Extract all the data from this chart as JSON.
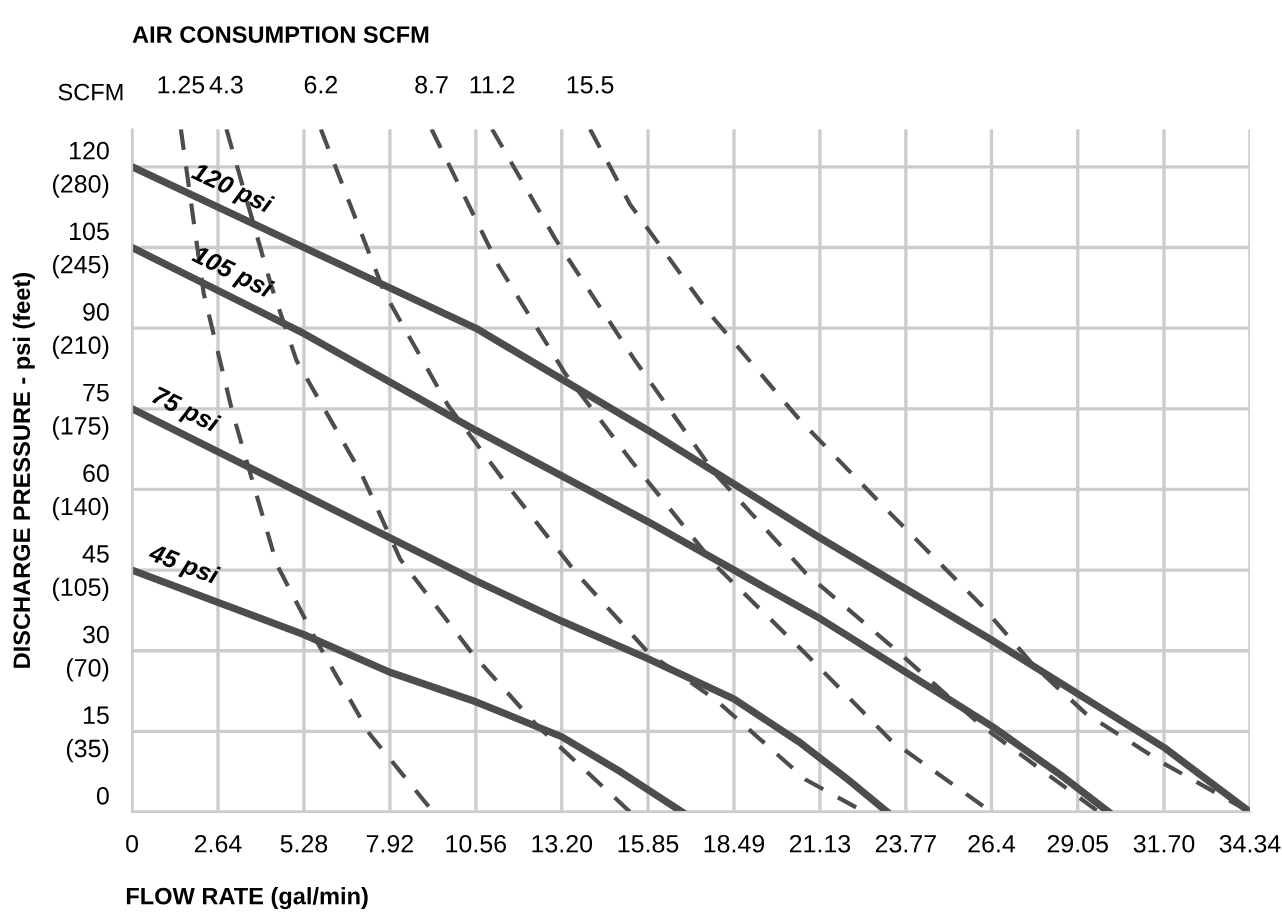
{
  "chart_data": {
    "type": "line",
    "title": "AIR CONSUMPTION SCFM",
    "xlabel": "FLOW RATE (gal/min)",
    "y2label": "DISCHARGE PRESSURE - psi (feet)",
    "annotations": [
      "SCFM"
    ],
    "series": [
      {
        "name": "120 psi",
        "color": "#4d4d4d",
        "line_style": "solid",
        "x": [
          0,
          5.28,
          10.56,
          15.85,
          21.13,
          26.4,
          29.05,
          31.7,
          34.34
        ],
        "values": [
          120,
          105,
          90,
          71,
          51,
          32,
          22,
          12,
          0
        ]
      },
      {
        "name": "105 psi",
        "color": "#4d4d4d",
        "line_style": "solid",
        "x": [
          0,
          5.28,
          10.56,
          15.85,
          21.13,
          23.77,
          26.4,
          28.5,
          30.0
        ],
        "values": [
          105,
          89,
          71,
          54,
          36,
          26,
          16,
          7,
          0
        ]
      },
      {
        "name": "75 psi",
        "color": "#4d4d4d",
        "line_style": "solid",
        "x": [
          0,
          2.64,
          5.28,
          7.92,
          10.56,
          13.2,
          15.85,
          18.49,
          20.5,
          22,
          23.2
        ],
        "values": [
          75,
          67,
          59,
          51,
          43,
          35.5,
          28.5,
          21,
          13,
          6,
          0
        ]
      },
      {
        "name": "45 psi",
        "color": "#4d4d4d",
        "line_style": "solid",
        "x": [
          0,
          2.64,
          5.28,
          7.92,
          10.56,
          13.2,
          15,
          16.9
        ],
        "values": [
          45,
          39,
          33,
          26,
          20.5,
          14,
          7.5,
          0
        ]
      },
      {
        "name": "1.25",
        "color": "#4d4d4d",
        "line_style": "dashed",
        "x": [
          1.5,
          2.2,
          3.1,
          4.45,
          5.65,
          7.3,
          9.25
        ],
        "values": [
          127,
          96.5,
          74,
          46,
          32,
          14.5,
          0
        ]
      },
      {
        "name": "4.3",
        "color": "#4d4d4d",
        "line_style": "dashed",
        "x": [
          2.9,
          4.27,
          5.05,
          7.04,
          8.24,
          10.46,
          12.45,
          15.3
        ],
        "values": [
          127,
          98,
          84,
          63,
          47,
          29.4,
          16,
          0
        ]
      },
      {
        "name": "6.2",
        "color": "#4d4d4d",
        "line_style": "dashed",
        "x": [
          5.8,
          7.76,
          9.7,
          11.5,
          13.65,
          15.9,
          17.9,
          20.7,
          22.5
        ],
        "values": [
          127,
          96.5,
          75.7,
          61,
          44.4,
          29.4,
          21,
          6,
          0
        ]
      },
      {
        "name": "8.7",
        "color": "#4d4d4d",
        "line_style": "dashed",
        "x": [
          9.2,
          11.25,
          13.3,
          15.3,
          17.9,
          20.7,
          23.3,
          26.4
        ],
        "values": [
          127,
          101.7,
          81.6,
          65.6,
          46,
          29.4,
          13.4,
          0
        ]
      },
      {
        "name": "11.2",
        "color": "#4d4d4d",
        "line_style": "dashed",
        "x": [
          11.06,
          13.0,
          15.45,
          17.9,
          20.7,
          23.3,
          26.1,
          29.7
        ],
        "values": [
          127,
          106.6,
          84,
          63,
          44.4,
          31,
          16,
          0
        ]
      },
      {
        "name": "15.5",
        "color": "#4d4d4d",
        "line_style": "dashed",
        "x": [
          14.07,
          15.3,
          17.7,
          20.5,
          23.3,
          26.1,
          27.7,
          29.3,
          31.7,
          34.34
        ],
        "values": [
          127,
          113,
          93,
          73,
          55.5,
          38.4,
          27.2,
          18.3,
          9,
          0
        ]
      }
    ],
    "xlim": [
      0,
      34.34
    ],
    "ylim": [
      0,
      127
    ],
    "xticks": [
      0,
      2.64,
      5.28,
      7.92,
      10.56,
      {
        "value": 13.2,
        "label": "13.20"
      },
      15.85,
      18.49,
      21.13,
      23.77,
      26.4,
      29.05,
      {
        "value": 31.7,
        "label": "31.70"
      },
      34.34
    ],
    "yticks": [
      0,
      15,
      30,
      45,
      60,
      75,
      90,
      105,
      120
    ],
    "y2lim": [
      0,
      296.3
    ],
    "y2ticks": [
      {
        "value": 35,
        "label": "(35)"
      },
      {
        "value": 70,
        "label": "(70)"
      },
      {
        "value": 105,
        "label": "(105)"
      },
      {
        "value": 140,
        "label": "(140)"
      },
      {
        "value": 175,
        "label": "(175)"
      },
      {
        "value": 210,
        "label": "(210)"
      },
      {
        "value": 245,
        "label": "(245)"
      },
      {
        "value": 280,
        "label": "(280)"
      }
    ],
    "grid": true,
    "legend": false,
    "marker": "none"
  }
}
